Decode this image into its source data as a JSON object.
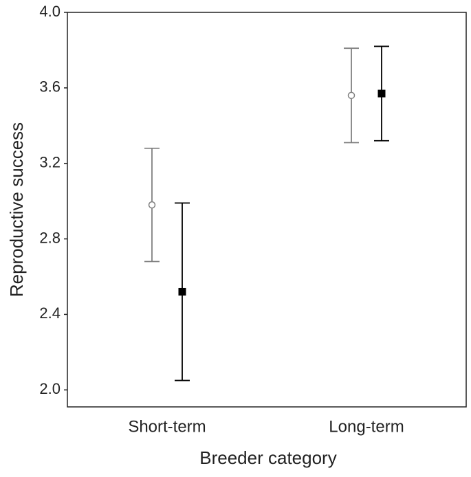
{
  "chart_data": {
    "type": "errorbar",
    "x_label": "Breeder category",
    "y_label": "Reproductive success",
    "categories": [
      "Short-term",
      "Long-term"
    ],
    "series": [
      {
        "color": "#808080",
        "marker": "open-circle",
        "values": [
          2.98,
          3.56
        ],
        "errors": [
          0.3,
          0.25
        ]
      },
      {
        "color": "#000000",
        "marker": "filled-square",
        "values": [
          2.52,
          3.57
        ],
        "errors": [
          0.47,
          0.25
        ]
      }
    ],
    "ylim": [
      1.91,
      4.0
    ],
    "yticks": [
      {
        "value": 2,
        "label": "2.0"
      },
      2.4,
      2.8,
      3.2,
      3.6,
      {
        "value": 4,
        "label": "4.0"
      }
    ],
    "grid": false
  }
}
